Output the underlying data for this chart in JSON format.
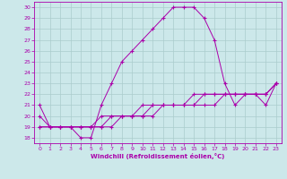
{
  "xlabel": "Windchill (Refroidissement éolien,°C)",
  "bg_color": "#cce8ea",
  "grid_color": "#aacccc",
  "line_color": "#aa00aa",
  "xlim": [
    -0.5,
    23.5
  ],
  "ylim": [
    17.5,
    30.5
  ],
  "yticks": [
    18,
    19,
    20,
    21,
    22,
    23,
    24,
    25,
    26,
    27,
    28,
    29,
    30
  ],
  "xticks": [
    0,
    1,
    2,
    3,
    4,
    5,
    6,
    7,
    8,
    9,
    10,
    11,
    12,
    13,
    14,
    15,
    16,
    17,
    18,
    19,
    20,
    21,
    22,
    23
  ],
  "series1_x": [
    0,
    1,
    2,
    3,
    4,
    5,
    6,
    7,
    8,
    9,
    10,
    11,
    12,
    13,
    14,
    15,
    16,
    17,
    18,
    19,
    20,
    21,
    22,
    23
  ],
  "series1_y": [
    21,
    19,
    19,
    19,
    18,
    18,
    21,
    23,
    25,
    26,
    27,
    28,
    29,
    30,
    30,
    30,
    29,
    27,
    23,
    21,
    22,
    22,
    21,
    23
  ],
  "series2_x": [
    0,
    1,
    2,
    3,
    4,
    5,
    6,
    7,
    8,
    9,
    10,
    11,
    12,
    13,
    14,
    15,
    16,
    17,
    18,
    19,
    20,
    21,
    22,
    23
  ],
  "series2_y": [
    19,
    19,
    19,
    19,
    19,
    19,
    19,
    19,
    20,
    20,
    20,
    21,
    21,
    21,
    21,
    22,
    22,
    22,
    22,
    22,
    22,
    22,
    22,
    23
  ],
  "series3_x": [
    0,
    1,
    2,
    3,
    4,
    5,
    6,
    7,
    8,
    9,
    10,
    11,
    12,
    13,
    14,
    15,
    16,
    17,
    18,
    19,
    20,
    21,
    22,
    23
  ],
  "series3_y": [
    19,
    19,
    19,
    19,
    19,
    19,
    20,
    20,
    20,
    20,
    20,
    20,
    21,
    21,
    21,
    21,
    21,
    21,
    22,
    22,
    22,
    22,
    22,
    23
  ],
  "series4_x": [
    0,
    1,
    2,
    3,
    4,
    5,
    6,
    7,
    8,
    9,
    10,
    11,
    12,
    13,
    14,
    15,
    16,
    17,
    18,
    19,
    20,
    21,
    22,
    23
  ],
  "series4_y": [
    20,
    19,
    19,
    19,
    19,
    19,
    19,
    20,
    20,
    20,
    21,
    21,
    21,
    21,
    21,
    21,
    22,
    22,
    22,
    22,
    22,
    22,
    22,
    23
  ]
}
